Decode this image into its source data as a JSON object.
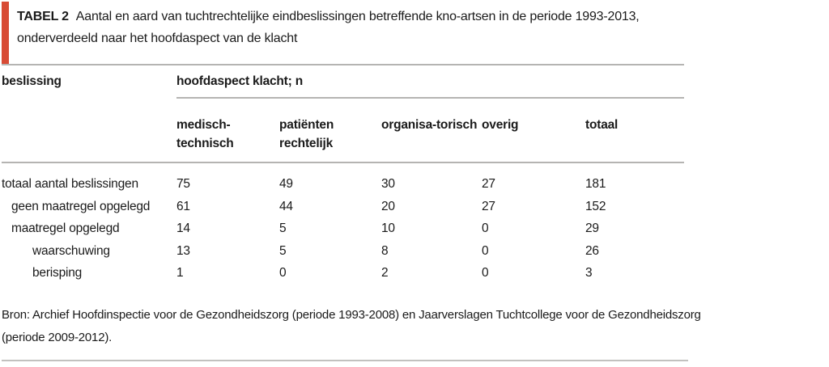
{
  "accent_color": "#d84b35",
  "title": {
    "label": "TABEL 2",
    "line1": "Aantal en aard van tuchtrechtelijke eindbeslissingen betreffende kno-artsen in de periode 1993-2013,",
    "line2": "onderverdeeld naar het hoofdaspect van de klacht"
  },
  "table": {
    "row_header": "beslissing",
    "group_header": "hoofdaspect klacht; n",
    "columns": [
      {
        "line1": "medisch-",
        "line2": "technisch"
      },
      {
        "line1": "patiënten",
        "line2": "rechtelijk"
      },
      {
        "line1": "organisa-torisch",
        "line2": ""
      },
      {
        "line1": "overig",
        "line2": ""
      },
      {
        "line1": "totaal",
        "line2": ""
      }
    ],
    "rows": [
      {
        "label": "totaal aantal beslissingen",
        "values": [
          "75",
          "49",
          "30",
          "27",
          "181"
        ]
      },
      {
        "label": "geen maatregel opgelegd",
        "values": [
          "61",
          "44",
          "20",
          "27",
          "152"
        ]
      },
      {
        "label": "maatregel opgelegd",
        "values": [
          "14",
          "5",
          "10",
          "0",
          "29"
        ]
      },
      {
        "label": "waarschuwing",
        "values": [
          "13",
          "5",
          "8",
          "0",
          "26"
        ]
      },
      {
        "label": "berisping",
        "values": [
          "1",
          "0",
          "2",
          "0",
          "3"
        ]
      }
    ]
  },
  "source_note": {
    "line1": "Bron: Archief Hoofdinspectie voor de Gezondheidszorg (periode 1993-2008) en Jaarverslagen Tuchtcollege voor de Gezondheidszorg",
    "line2": "(periode 2009-2012)."
  }
}
